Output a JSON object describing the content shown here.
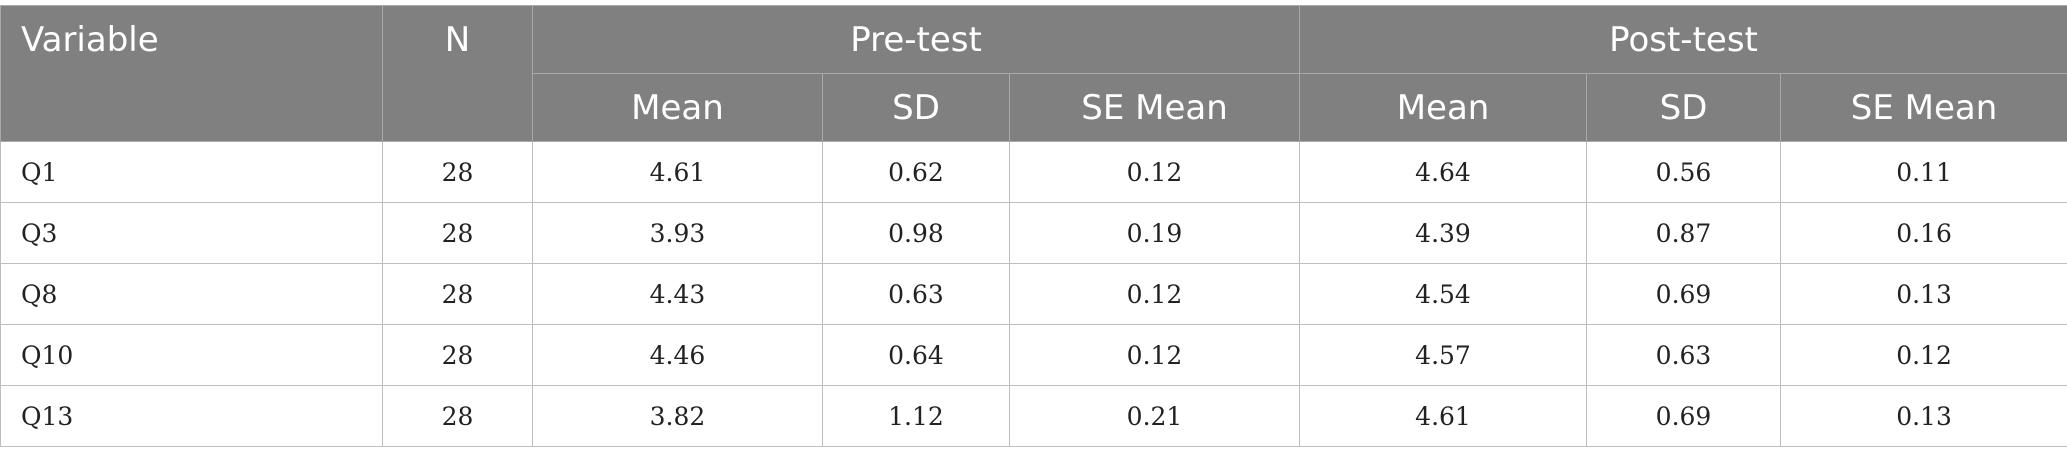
{
  "table": {
    "headers": {
      "variable": "Variable",
      "n": "N",
      "pre_test": "Pre-test",
      "post_test": "Post-test",
      "sub": [
        "Mean",
        "SD",
        "SE Mean",
        "Mean",
        "SD",
        "SE Mean"
      ]
    },
    "rows": [
      {
        "variable": "Q1",
        "n": "28",
        "pre_mean": "4.61",
        "pre_sd": "0.62",
        "pre_se": "0.12",
        "post_mean": "4.64",
        "post_sd": "0.56",
        "post_se": "0.11"
      },
      {
        "variable": "Q3",
        "n": "28",
        "pre_mean": "3.93",
        "pre_sd": "0.98",
        "pre_se": "0.19",
        "post_mean": "4.39",
        "post_sd": "0.87",
        "post_se": "0.16"
      },
      {
        "variable": "Q8",
        "n": "28",
        "pre_mean": "4.43",
        "pre_sd": "0.63",
        "pre_se": "0.12",
        "post_mean": "4.54",
        "post_sd": "0.69",
        "post_se": "0.13"
      },
      {
        "variable": "Q10",
        "n": "28",
        "pre_mean": "4.46",
        "pre_sd": "0.64",
        "pre_se": "0.12",
        "post_mean": "4.57",
        "post_sd": "0.63",
        "post_se": "0.12"
      },
      {
        "variable": "Q13",
        "n": "28",
        "pre_mean": "3.82",
        "pre_sd": "1.12",
        "pre_se": "0.21",
        "post_mean": "4.61",
        "post_sd": "0.69",
        "post_se": "0.13"
      }
    ]
  }
}
